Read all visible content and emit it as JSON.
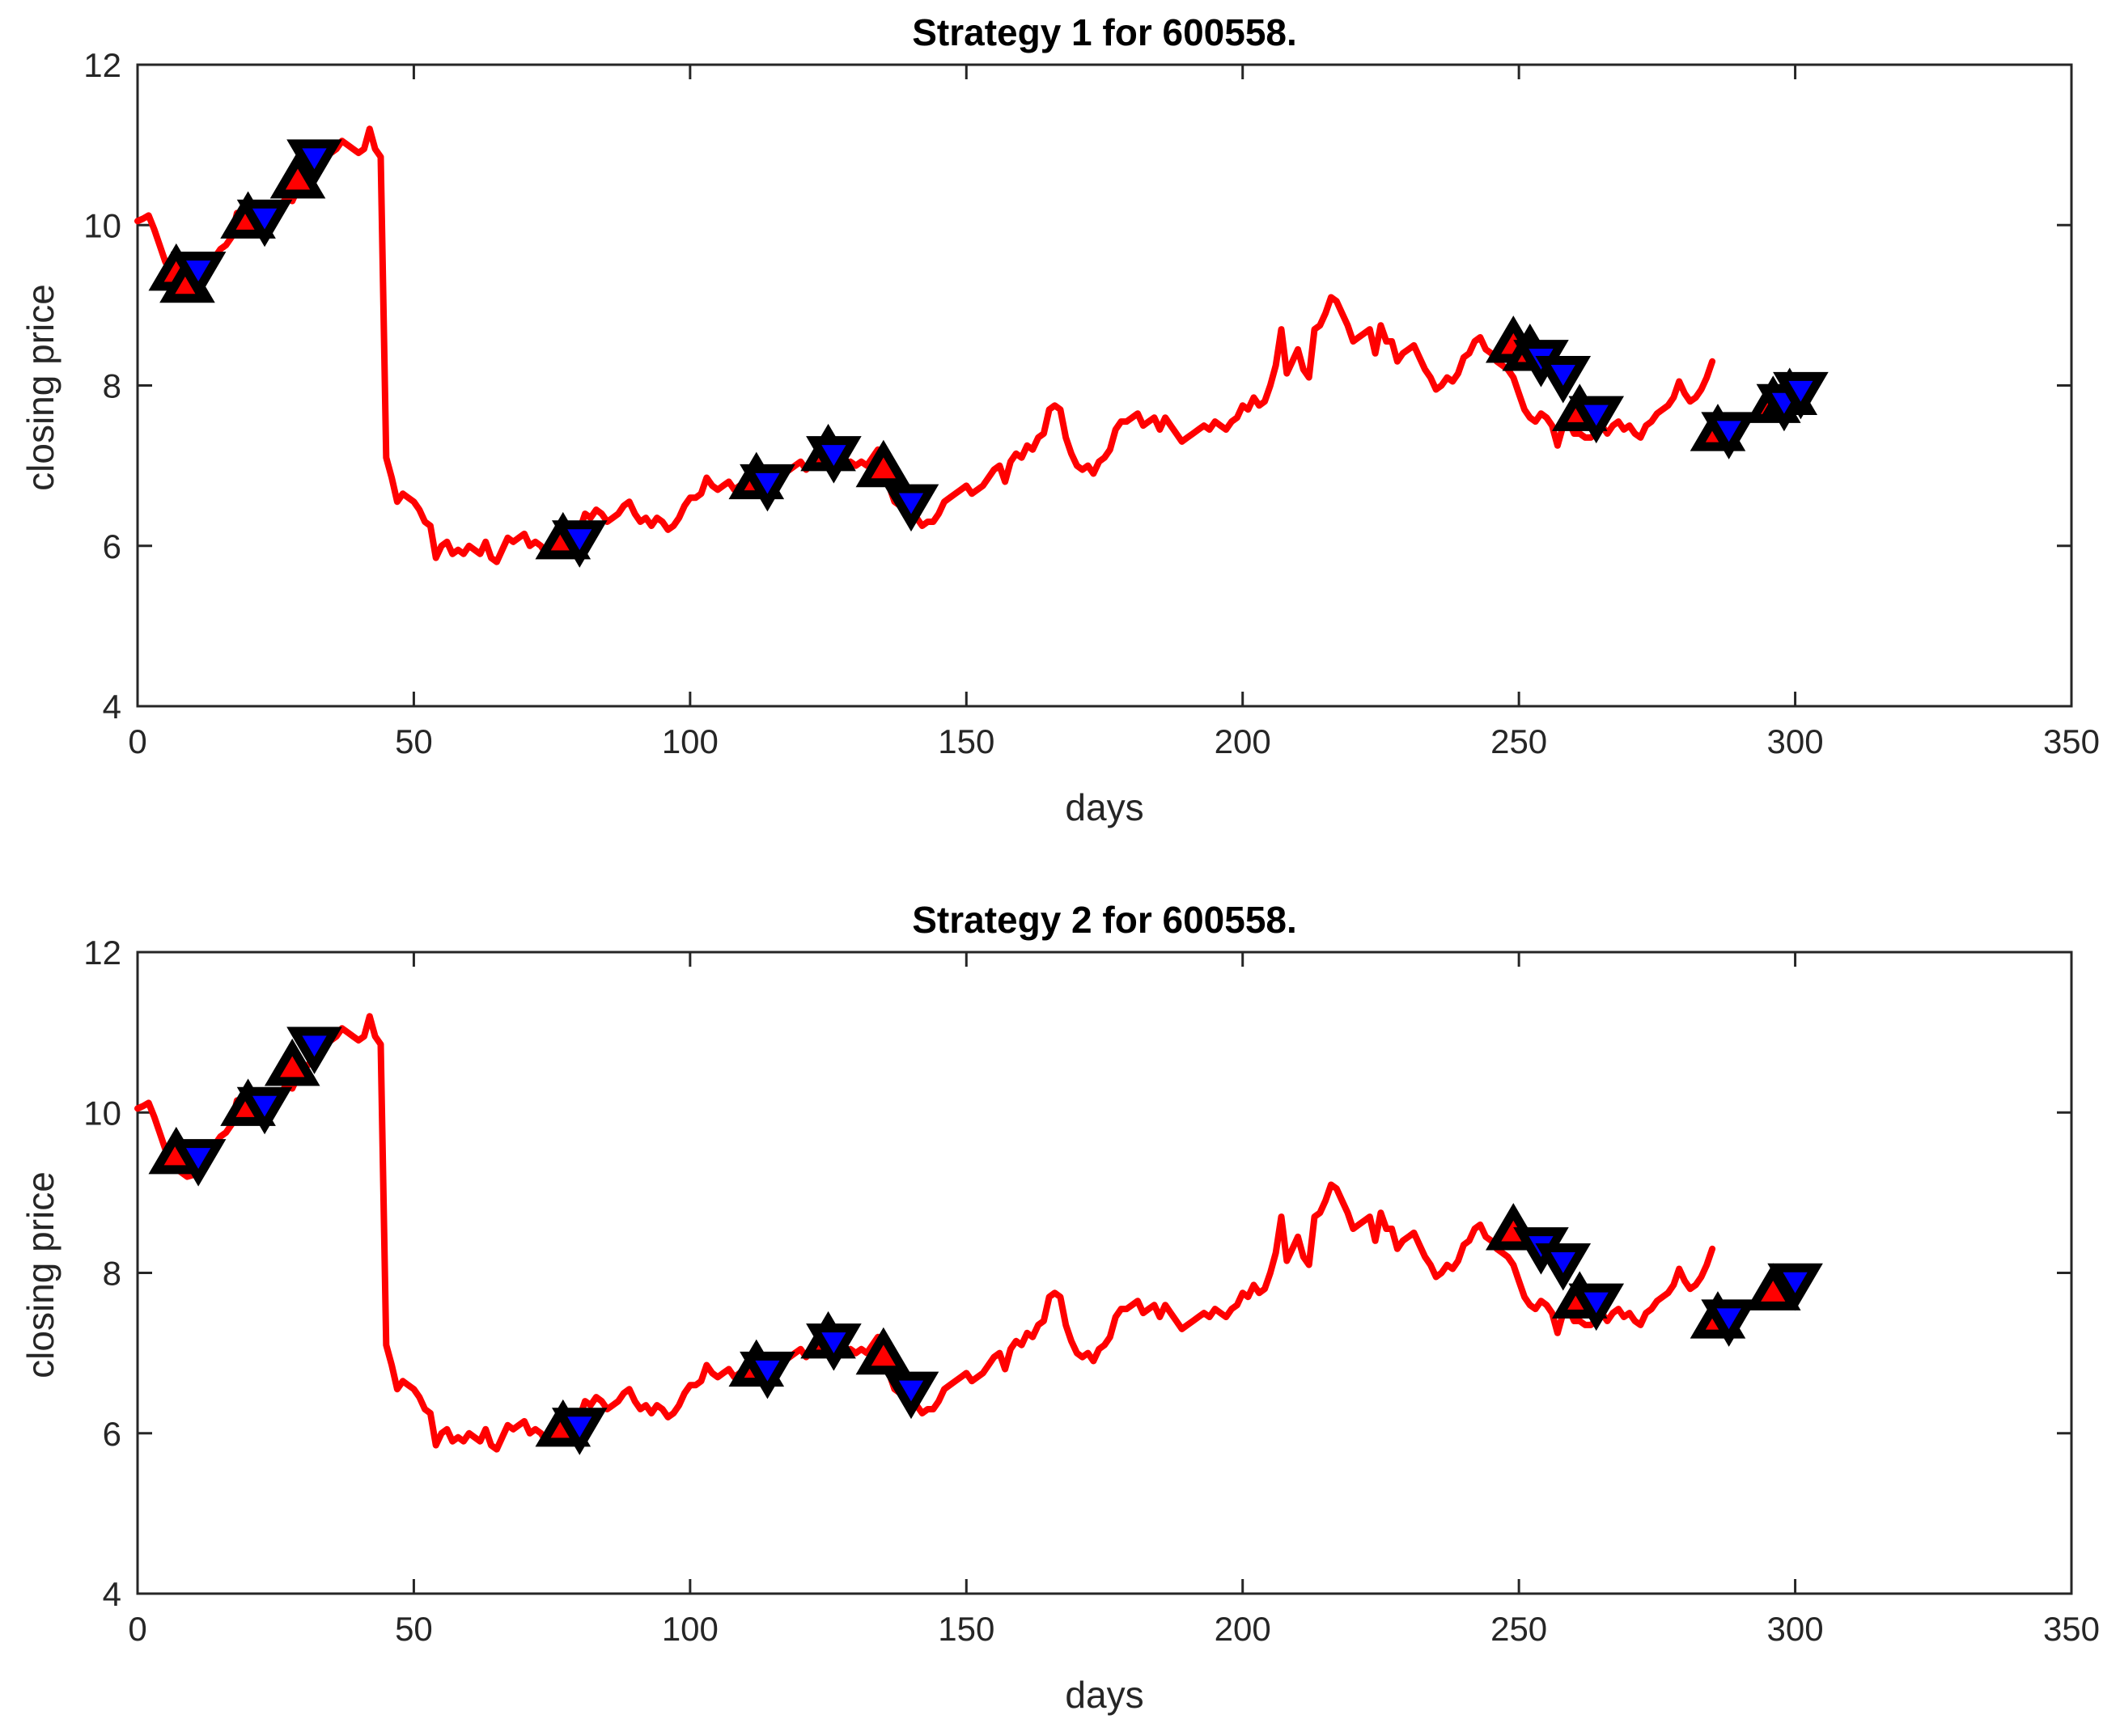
{
  "colors": {
    "line": "#ff0000",
    "buy": "#ff0000",
    "sell": "#0000ff",
    "marker_edge": "#000000",
    "axis": "#262626"
  },
  "chart_data": [
    {
      "type": "line",
      "title": "Strategy 1 for 600558.",
      "xlabel": "days",
      "ylabel": "closing price",
      "xlim": [
        0,
        350
      ],
      "ylim": [
        4,
        12
      ],
      "xticks": [
        "0",
        "50",
        "100",
        "150",
        "200",
        "250",
        "300",
        "350"
      ],
      "yticks": [
        "4",
        "6",
        "8",
        "10",
        "12"
      ],
      "grid": false,
      "series": [
        {
          "name": "closing price",
          "x_start": 0,
          "values": [
            10.05,
            10.08,
            10.12,
            9.95,
            9.75,
            9.55,
            9.4,
            9.3,
            9.25,
            9.2,
            9.22,
            9.35,
            9.45,
            9.5,
            9.6,
            9.7,
            9.75,
            9.85,
            10.15,
            9.9,
            10.0,
            9.95,
            10.05,
            10.1,
            10.1,
            10.15,
            10.25,
            10.35,
            10.3,
            10.45,
            10.55,
            10.6,
            10.75,
            10.8,
            10.85,
            10.9,
            10.95,
            11.05,
            11.0,
            10.95,
            10.9,
            10.95,
            11.2,
            10.95,
            10.85,
            7.1,
            6.85,
            6.55,
            6.65,
            6.6,
            6.55,
            6.45,
            6.3,
            6.25,
            5.85,
            6.0,
            6.05,
            5.9,
            5.95,
            5.9,
            6.0,
            5.95,
            5.9,
            6.05,
            5.85,
            5.8,
            5.95,
            6.1,
            6.05,
            6.1,
            6.15,
            6.0,
            6.05,
            6.0,
            5.9,
            5.95,
            6.1,
            6.05,
            6.1,
            6.05,
            6.2,
            6.4,
            6.35,
            6.45,
            6.4,
            6.3,
            6.35,
            6.4,
            6.5,
            6.55,
            6.4,
            6.3,
            6.35,
            6.25,
            6.35,
            6.3,
            6.2,
            6.25,
            6.35,
            6.5,
            6.6,
            6.6,
            6.65,
            6.85,
            6.75,
            6.7,
            6.75,
            6.8,
            6.7,
            6.75,
            6.8,
            6.85,
            6.75,
            6.9,
            6.7,
            6.85,
            6.8,
            6.9,
            6.95,
            7.0,
            7.05,
            6.95,
            7.05,
            7.1,
            7.15,
            7.2,
            7.15,
            7.05,
            7.0,
            7.05,
            7.0,
            7.05,
            7.0,
            7.1,
            7.2,
            6.95,
            6.75,
            6.55,
            6.5,
            6.4,
            6.3,
            6.35,
            6.25,
            6.3,
            6.3,
            6.4,
            6.55,
            6.6,
            6.65,
            6.7,
            6.75,
            6.65,
            6.7,
            6.75,
            6.85,
            6.95,
            7.0,
            6.8,
            7.05,
            7.15,
            7.1,
            7.25,
            7.2,
            7.35,
            7.4,
            7.7,
            7.75,
            7.7,
            7.35,
            7.15,
            7.0,
            6.95,
            7.0,
            6.9,
            7.05,
            7.1,
            7.2,
            7.45,
            7.55,
            7.55,
            7.6,
            7.65,
            7.5,
            7.55,
            7.6,
            7.45,
            7.6,
            7.5,
            7.4,
            7.3,
            7.35,
            7.4,
            7.45,
            7.5,
            7.45,
            7.55,
            7.5,
            7.45,
            7.55,
            7.6,
            7.75,
            7.7,
            7.85,
            7.75,
            7.8,
            8.0,
            8.25,
            8.7,
            8.15,
            8.3,
            8.45,
            8.2,
            8.1,
            8.7,
            8.75,
            8.9,
            9.1,
            9.05,
            8.9,
            8.75,
            8.55,
            8.6,
            8.65,
            8.7,
            8.4,
            8.75,
            8.55,
            8.55,
            8.3,
            8.4,
            8.45,
            8.5,
            8.35,
            8.2,
            8.1,
            7.95,
            8.0,
            8.1,
            8.05,
            8.15,
            8.35,
            8.4,
            8.55,
            8.6,
            8.45,
            8.4,
            8.3,
            8.25,
            8.2,
            8.1,
            7.9,
            7.7,
            7.6,
            7.55,
            7.65,
            7.6,
            7.5,
            7.25,
            7.5,
            7.55,
            7.4,
            7.4,
            7.35,
            7.35,
            7.4,
            7.5,
            7.4,
            7.5,
            7.55,
            7.45,
            7.5,
            7.4,
            7.35,
            7.5,
            7.55,
            7.65,
            7.7,
            7.75,
            7.85,
            8.05,
            7.9,
            7.8,
            7.85,
            7.95,
            8.1,
            8.3
          ]
        }
      ],
      "buy_signals": [
        {
          "x": 7,
          "y": 9.4
        },
        {
          "x": 9,
          "y": 9.25
        },
        {
          "x": 20,
          "y": 10.05
        },
        {
          "x": 29,
          "y": 10.55
        },
        {
          "x": 77,
          "y": 6.05
        },
        {
          "x": 112,
          "y": 6.8
        },
        {
          "x": 125,
          "y": 7.15
        },
        {
          "x": 135,
          "y": 6.95
        },
        {
          "x": 249,
          "y": 8.5
        },
        {
          "x": 252,
          "y": 8.4
        },
        {
          "x": 261,
          "y": 7.65
        },
        {
          "x": 286,
          "y": 7.4
        },
        {
          "x": 296,
          "y": 7.75
        },
        {
          "x": 299,
          "y": 7.85
        }
      ],
      "sell_signals": [
        {
          "x": 11,
          "y": 9.45
        },
        {
          "x": 23,
          "y": 10.1
        },
        {
          "x": 32,
          "y": 10.85
        },
        {
          "x": 80,
          "y": 6.1
        },
        {
          "x": 114,
          "y": 6.8
        },
        {
          "x": 126,
          "y": 7.15
        },
        {
          "x": 140,
          "y": 6.55
        },
        {
          "x": 254,
          "y": 8.35
        },
        {
          "x": 258,
          "y": 8.15
        },
        {
          "x": 264,
          "y": 7.65
        },
        {
          "x": 288,
          "y": 7.45
        },
        {
          "x": 298,
          "y": 7.8
        },
        {
          "x": 301,
          "y": 7.95
        }
      ]
    },
    {
      "type": "line",
      "title": "Strategy 2 for 600558.",
      "xlabel": "days",
      "ylabel": "closing price",
      "xlim": [
        0,
        350
      ],
      "ylim": [
        4,
        12
      ],
      "xticks": [
        "0",
        "50",
        "100",
        "150",
        "200",
        "250",
        "300",
        "350"
      ],
      "yticks": [
        "4",
        "6",
        "8",
        "10",
        "12"
      ],
      "grid": false,
      "series": [
        {
          "name": "closing price",
          "x_start": 0,
          "values": [
            10.05,
            10.08,
            10.12,
            9.95,
            9.75,
            9.55,
            9.4,
            9.3,
            9.25,
            9.2,
            9.22,
            9.35,
            9.45,
            9.5,
            9.6,
            9.7,
            9.75,
            9.85,
            10.15,
            9.9,
            10.0,
            9.95,
            10.05,
            10.1,
            10.1,
            10.15,
            10.25,
            10.35,
            10.3,
            10.45,
            10.55,
            10.6,
            10.75,
            10.8,
            10.85,
            10.9,
            10.95,
            11.05,
            11.0,
            10.95,
            10.9,
            10.95,
            11.2,
            10.95,
            10.85,
            7.1,
            6.85,
            6.55,
            6.65,
            6.6,
            6.55,
            6.45,
            6.3,
            6.25,
            5.85,
            6.0,
            6.05,
            5.9,
            5.95,
            5.9,
            6.0,
            5.95,
            5.9,
            6.05,
            5.85,
            5.8,
            5.95,
            6.1,
            6.05,
            6.1,
            6.15,
            6.0,
            6.05,
            6.0,
            5.9,
            5.95,
            6.1,
            6.05,
            6.1,
            6.05,
            6.2,
            6.4,
            6.35,
            6.45,
            6.4,
            6.3,
            6.35,
            6.4,
            6.5,
            6.55,
            6.4,
            6.3,
            6.35,
            6.25,
            6.35,
            6.3,
            6.2,
            6.25,
            6.35,
            6.5,
            6.6,
            6.6,
            6.65,
            6.85,
            6.75,
            6.7,
            6.75,
            6.8,
            6.7,
            6.75,
            6.8,
            6.85,
            6.75,
            6.9,
            6.7,
            6.85,
            6.8,
            6.9,
            6.95,
            7.0,
            7.05,
            6.95,
            7.05,
            7.1,
            7.15,
            7.2,
            7.15,
            7.05,
            7.0,
            7.05,
            7.0,
            7.05,
            7.0,
            7.1,
            7.2,
            6.95,
            6.75,
            6.55,
            6.5,
            6.4,
            6.3,
            6.35,
            6.25,
            6.3,
            6.3,
            6.4,
            6.55,
            6.6,
            6.65,
            6.7,
            6.75,
            6.65,
            6.7,
            6.75,
            6.85,
            6.95,
            7.0,
            6.8,
            7.05,
            7.15,
            7.1,
            7.25,
            7.2,
            7.35,
            7.4,
            7.7,
            7.75,
            7.7,
            7.35,
            7.15,
            7.0,
            6.95,
            7.0,
            6.9,
            7.05,
            7.1,
            7.2,
            7.45,
            7.55,
            7.55,
            7.6,
            7.65,
            7.5,
            7.55,
            7.6,
            7.45,
            7.6,
            7.5,
            7.4,
            7.3,
            7.35,
            7.4,
            7.45,
            7.5,
            7.45,
            7.55,
            7.5,
            7.45,
            7.55,
            7.6,
            7.75,
            7.7,
            7.85,
            7.75,
            7.8,
            8.0,
            8.25,
            8.7,
            8.15,
            8.3,
            8.45,
            8.2,
            8.1,
            8.7,
            8.75,
            8.9,
            9.1,
            9.05,
            8.9,
            8.75,
            8.55,
            8.6,
            8.65,
            8.7,
            8.4,
            8.75,
            8.55,
            8.55,
            8.3,
            8.4,
            8.45,
            8.5,
            8.35,
            8.2,
            8.1,
            7.95,
            8.0,
            8.1,
            8.05,
            8.15,
            8.35,
            8.4,
            8.55,
            8.6,
            8.45,
            8.4,
            8.3,
            8.25,
            8.2,
            8.1,
            7.9,
            7.7,
            7.6,
            7.55,
            7.65,
            7.6,
            7.5,
            7.25,
            7.5,
            7.55,
            7.4,
            7.4,
            7.35,
            7.35,
            7.4,
            7.5,
            7.4,
            7.5,
            7.55,
            7.45,
            7.5,
            7.4,
            7.35,
            7.5,
            7.55,
            7.65,
            7.7,
            7.75,
            7.85,
            8.05,
            7.9,
            7.8,
            7.85,
            7.95,
            8.1,
            8.3
          ]
        }
      ],
      "buy_signals": [
        {
          "x": 7,
          "y": 9.45
        },
        {
          "x": 20,
          "y": 10.05
        },
        {
          "x": 28,
          "y": 10.55
        },
        {
          "x": 77,
          "y": 6.05
        },
        {
          "x": 112,
          "y": 6.8
        },
        {
          "x": 125,
          "y": 7.15
        },
        {
          "x": 135,
          "y": 6.95
        },
        {
          "x": 249,
          "y": 8.5
        },
        {
          "x": 261,
          "y": 7.65
        },
        {
          "x": 286,
          "y": 7.4
        },
        {
          "x": 296,
          "y": 7.75
        }
      ],
      "sell_signals": [
        {
          "x": 11,
          "y": 9.45
        },
        {
          "x": 23,
          "y": 10.1
        },
        {
          "x": 32,
          "y": 10.85
        },
        {
          "x": 80,
          "y": 6.1
        },
        {
          "x": 114,
          "y": 6.8
        },
        {
          "x": 126,
          "y": 7.15
        },
        {
          "x": 140,
          "y": 6.55
        },
        {
          "x": 254,
          "y": 8.35
        },
        {
          "x": 258,
          "y": 8.15
        },
        {
          "x": 264,
          "y": 7.65
        },
        {
          "x": 288,
          "y": 7.45
        },
        {
          "x": 300,
          "y": 7.9
        }
      ]
    }
  ]
}
